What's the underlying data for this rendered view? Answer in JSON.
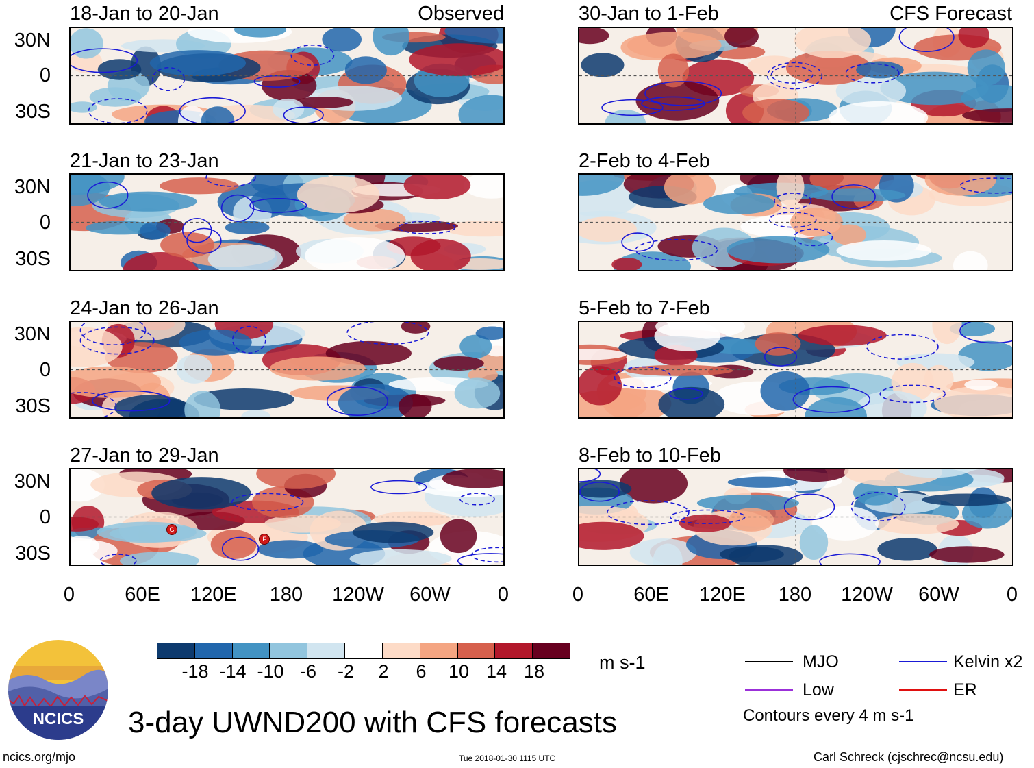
{
  "left_panels": [
    {
      "title": "18-Jan to 20-Jan",
      "label": "Observed"
    },
    {
      "title": "21-Jan to 23-Jan",
      "label": ""
    },
    {
      "title": "24-Jan to 26-Jan",
      "label": ""
    },
    {
      "title": "27-Jan to 29-Jan",
      "label": ""
    }
  ],
  "right_panels": [
    {
      "title": "30-Jan to 1-Feb",
      "label": "CFS Forecast"
    },
    {
      "title": "2-Feb to 4-Feb",
      "label": ""
    },
    {
      "title": "5-Feb to 7-Feb",
      "label": ""
    },
    {
      "title": "8-Feb to 10-Feb",
      "label": ""
    }
  ],
  "lat_labels": [
    "30N",
    "0",
    "30S"
  ],
  "lon_labels": [
    "0",
    "60E",
    "120E",
    "180",
    "120W",
    "60W",
    "0"
  ],
  "storm_markers": [
    "G",
    "F"
  ],
  "colorbar": {
    "colors": [
      "#0d3a6e",
      "#2166ac",
      "#4393c3",
      "#92c5de",
      "#d1e5f0",
      "#ffffff",
      "#fddbc7",
      "#f4a582",
      "#d6604d",
      "#b2182b",
      "#67001f"
    ],
    "ticks": [
      "-18",
      "-14",
      "-10",
      "-6",
      "-2",
      "2",
      "6",
      "10",
      "14",
      "18"
    ],
    "units": "m s-1"
  },
  "legend": {
    "items": [
      {
        "label": "MJO",
        "color": "#000000"
      },
      {
        "label": "Kelvin x2",
        "color": "#1a1ad6"
      },
      {
        "label": "Low",
        "color": "#9b30d9"
      },
      {
        "label": "ER",
        "color": "#e01010"
      }
    ],
    "note": "Contours every 4 m s-1"
  },
  "logo_text": "NCICS",
  "main_title": "3-day UWND200 with CFS forecasts",
  "footer": {
    "url": "ncics.org/mjo",
    "timestamp": "Tue 2018-01-30 1115 UTC",
    "credit": "Carl Schreck (cjschrec@ncsu.edu)"
  }
}
